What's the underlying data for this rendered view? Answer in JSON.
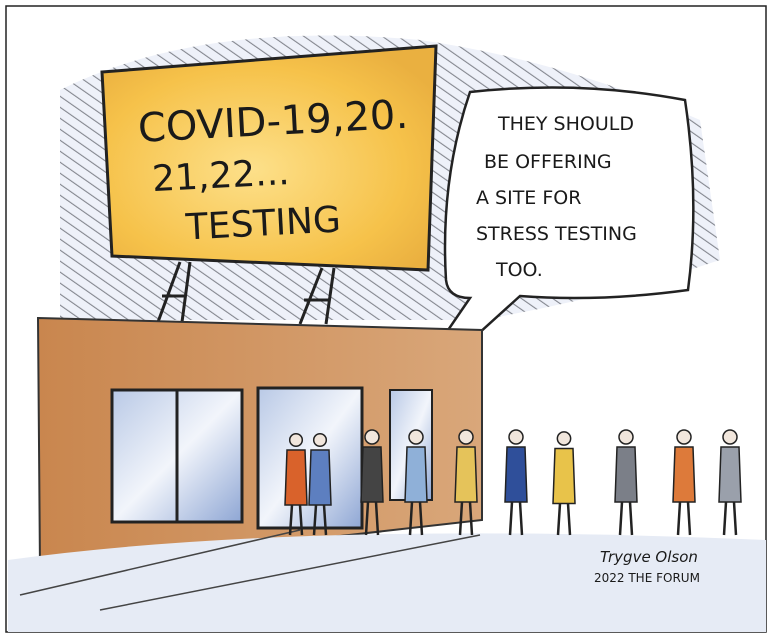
{
  "billboard": {
    "lines": [
      "COVID-19,20.",
      "21,22...",
      "TESTING"
    ]
  },
  "speech_bubble": {
    "lines": [
      "THEY SHOULD",
      "BE OFFERING",
      "A SITE FOR",
      "STRESS TESTING",
      "TOO."
    ]
  },
  "signature": {
    "name": "Trygve Olson",
    "credit": "2022 THE FORUM"
  }
}
